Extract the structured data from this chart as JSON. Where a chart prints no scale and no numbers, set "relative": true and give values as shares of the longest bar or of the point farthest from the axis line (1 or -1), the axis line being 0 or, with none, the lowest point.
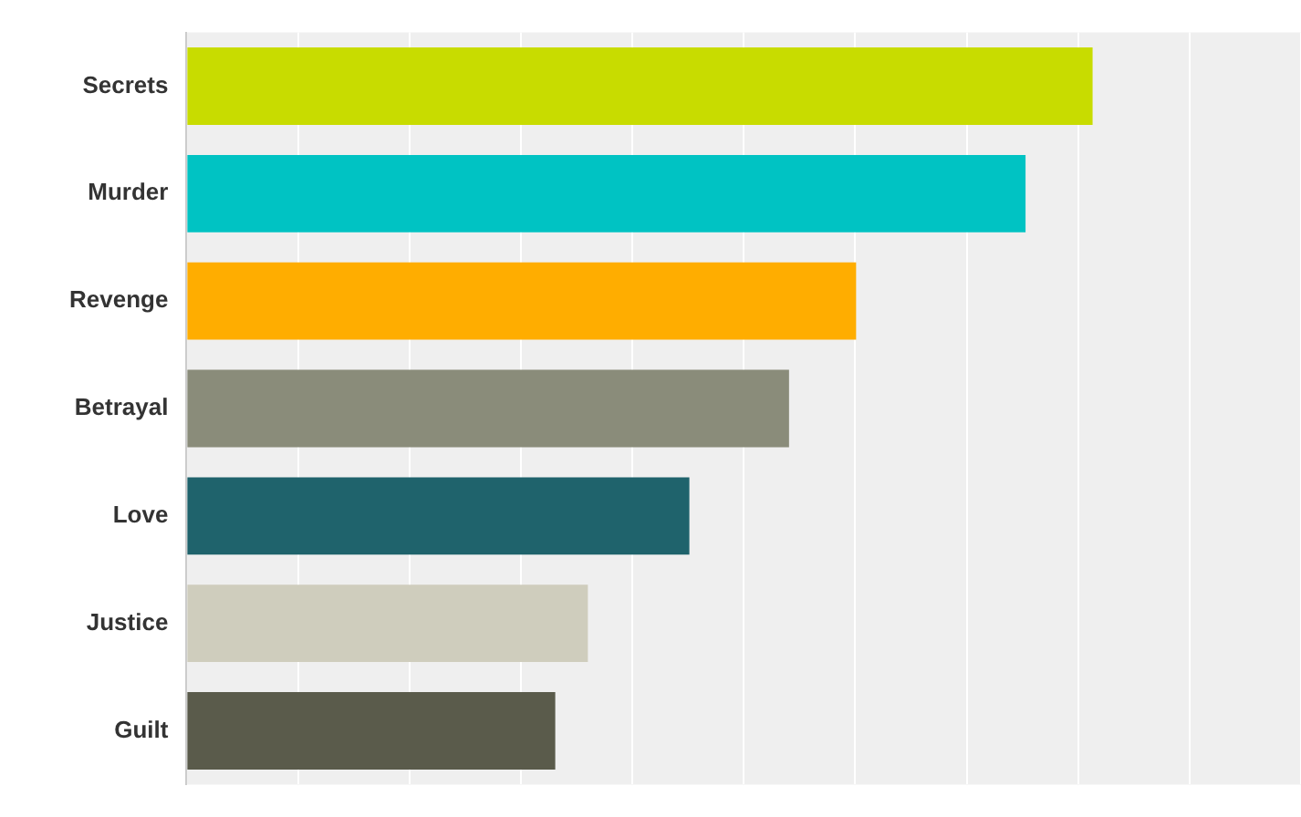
{
  "chart_data": {
    "type": "bar",
    "orientation": "horizontal",
    "relative": true,
    "grid": "x",
    "legend": false,
    "categories": [
      "Secrets",
      "Murder",
      "Revenge",
      "Betrayal",
      "Love",
      "Justice",
      "Guilt"
    ],
    "values": [
      1,
      0.926,
      0.739,
      0.665,
      0.555,
      0.443,
      0.407
    ],
    "colors": [
      "#c8dc00",
      "#00c3c3",
      "#ffad00",
      "#8a8c7a",
      "#1f636c",
      "#cfcdbd",
      "#5a5b4b"
    ]
  }
}
